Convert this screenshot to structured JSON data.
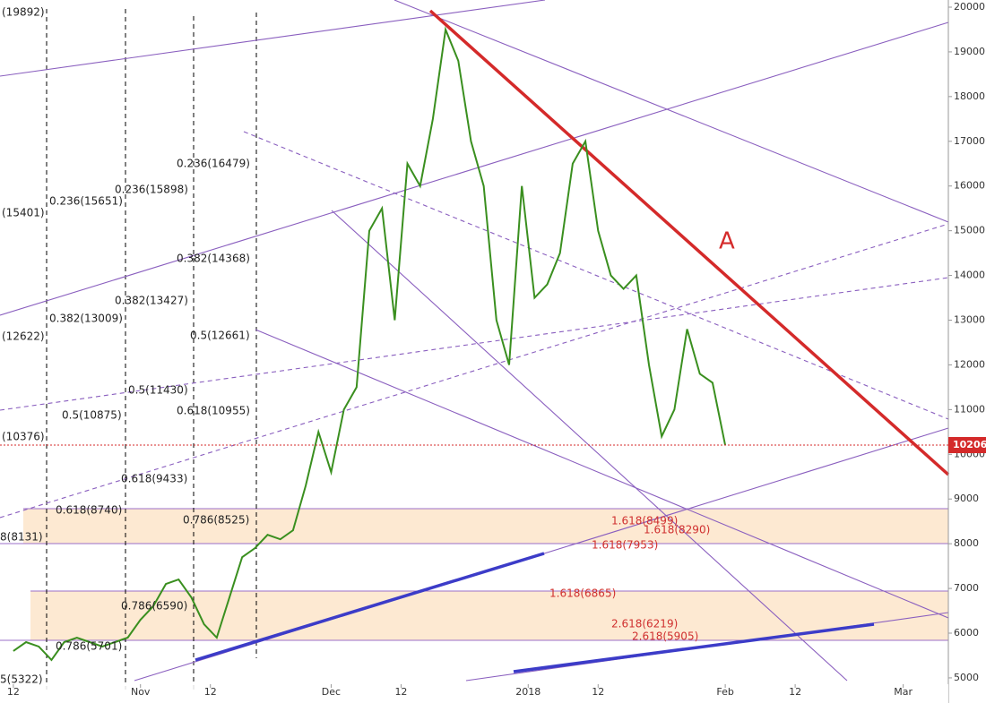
{
  "chart_data": {
    "type": "line",
    "color": "#3a8f1f",
    "x": [
      0,
      2,
      4,
      6,
      8,
      10,
      12,
      14,
      16,
      18,
      20,
      22,
      24,
      26,
      28,
      30,
      32,
      34,
      36,
      38,
      40,
      42,
      44,
      46,
      48,
      50,
      52,
      54,
      56,
      58,
      60,
      62,
      64,
      66,
      68,
      70,
      72,
      74,
      76,
      78,
      80,
      82,
      84,
      86,
      88,
      90,
      92,
      94,
      96,
      98,
      100,
      102,
      104,
      106,
      108,
      110,
      112
    ],
    "values": [
      5600,
      5800,
      5700,
      5400,
      5800,
      5900,
      5800,
      5700,
      5800,
      5900,
      6300,
      6600,
      7100,
      7200,
      6800,
      6200,
      5900,
      6800,
      7700,
      7900,
      8200,
      8100,
      8300,
      9300,
      10500,
      9600,
      11000,
      11500,
      15000,
      15500,
      13000,
      16500,
      16000,
      17500,
      19500,
      18800,
      17000,
      16000,
      13000,
      12000,
      16000,
      13500,
      13800,
      14500,
      16500,
      17000,
      15000,
      14000,
      13700,
      14000,
      12000,
      10400,
      11000,
      12800,
      11800,
      11600,
      10200
    ],
    "xlim": [
      -2.1,
      147.1
    ],
    "ylim": [
      4438,
      20160
    ],
    "xticks": [
      {
        "value": 0,
        "label": "12"
      },
      {
        "value": 20,
        "label": "Nov"
      },
      {
        "value": 31,
        "label": "12"
      },
      {
        "value": 50,
        "label": "Dec"
      },
      {
        "value": 61,
        "label": "12"
      },
      {
        "value": 81,
        "label": "2018"
      },
      {
        "value": 92,
        "label": "12"
      },
      {
        "value": 112,
        "label": "Feb"
      },
      {
        "value": 123,
        "label": "12"
      },
      {
        "value": 140,
        "label": "Mar"
      }
    ],
    "yticks": [
      5000,
      6000,
      7000,
      8000,
      9000,
      10000,
      11000,
      12000,
      13000,
      14000,
      15000,
      16000,
      17000,
      18000,
      19000,
      20000
    ],
    "last_price": 10206,
    "annotations": [
      "(19892)",
      "0.236(15651)",
      "0.236(15898)",
      "0.236(16479)",
      "(15401)",
      "0.382(14368)",
      "0.382(13427)",
      "0.382(13009)",
      "(12622)",
      "0.5(12661)",
      "0.5(11430)",
      "0.5(10875)",
      "0.618(10955)",
      "(10376)",
      "0.618(9433)",
      "0.618(8740)",
      "0.786(8525)",
      "8(8131)",
      "0.786(6590)",
      "0.786(5701)",
      "5(5322)"
    ],
    "red_annotations": [
      "1.618(8499)",
      "1.618(8290)",
      "1.618(7953)",
      "1.618(6865)",
      "2.618(6219)",
      "2.618(5905)"
    ],
    "label_a": "A"
  }
}
